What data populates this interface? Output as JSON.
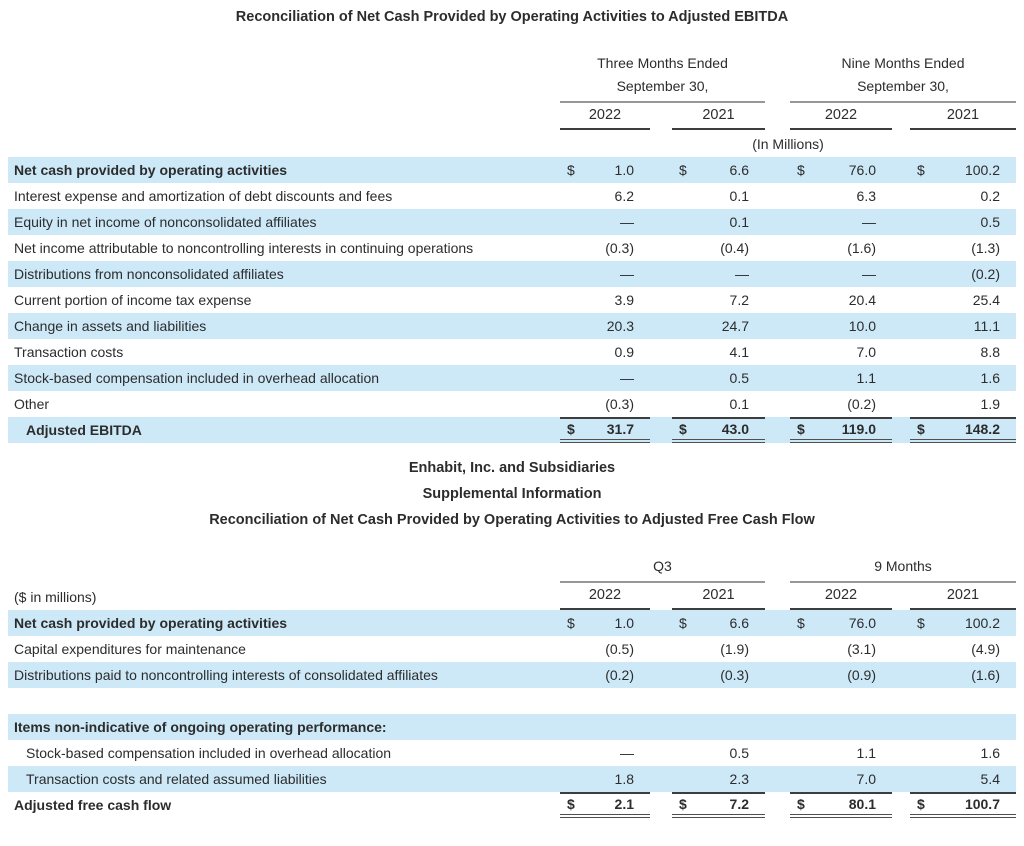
{
  "colors": {
    "stripe": "#cde9f8",
    "text": "#2c2c2c",
    "rule_light": "#979797",
    "rule_dark": "#3d3d3d"
  },
  "currency_symbol": "$",
  "table1": {
    "title": "Reconciliation of Net Cash Provided by Operating Activities to Adjusted EBITDA",
    "col_groups": [
      {
        "line1": "Three Months Ended",
        "line2": "September 30,"
      },
      {
        "line1": "Nine Months Ended",
        "line2": "September 30,"
      }
    ],
    "years": [
      "2022",
      "2021",
      "2022",
      "2021"
    ],
    "units_note": "(In Millions)",
    "rows": [
      {
        "label": "Net cash provided by operating activities",
        "values": [
          "1.0",
          "6.6",
          "76.0",
          "100.2"
        ],
        "dollar": true,
        "bold": true,
        "shade": true
      },
      {
        "label": "Interest expense and amortization of debt discounts and fees",
        "values": [
          "6.2",
          "0.1",
          "6.3",
          "0.2"
        ]
      },
      {
        "label": "Equity in net income of nonconsolidated affiliates",
        "values": [
          "—",
          "0.1",
          "—",
          "0.5"
        ],
        "shade": true
      },
      {
        "label": "Net income attributable to noncontrolling interests in continuing operations",
        "values": [
          "(0.3)",
          "(0.4)",
          "(1.6)",
          "(1.3)"
        ]
      },
      {
        "label": "Distributions from nonconsolidated affiliates",
        "values": [
          "—",
          "—",
          "—",
          "(0.2)"
        ],
        "shade": true
      },
      {
        "label": "Current portion of income tax expense",
        "values": [
          "3.9",
          "7.2",
          "20.4",
          "25.4"
        ]
      },
      {
        "label": "Change in assets and liabilities",
        "values": [
          "20.3",
          "24.7",
          "10.0",
          "11.1"
        ],
        "shade": true
      },
      {
        "label": "Transaction costs",
        "values": [
          "0.9",
          "4.1",
          "7.0",
          "8.8"
        ]
      },
      {
        "label": "Stock-based compensation included in overhead allocation",
        "values": [
          "—",
          "0.5",
          "1.1",
          "1.6"
        ],
        "shade": true
      },
      {
        "label": "Other",
        "values": [
          "(0.3)",
          "0.1",
          "(0.2)",
          "1.9"
        ]
      },
      {
        "label": "Adjusted EBITDA",
        "values": [
          "31.7",
          "43.0",
          "119.0",
          "148.2"
        ],
        "dollar": true,
        "bold": true,
        "shade": true,
        "indent": true,
        "total": true
      }
    ]
  },
  "section2": {
    "company": "Enhabit, Inc. and Subsidiaries",
    "subtitle": "Supplemental Information",
    "title": "Reconciliation of Net Cash Provided by Operating Activities to Adjusted Free Cash Flow"
  },
  "table2": {
    "left_label": "($ in millions)",
    "col_groups": [
      {
        "label": "Q3"
      },
      {
        "label": "9 Months"
      }
    ],
    "years": [
      "2022",
      "2021",
      "2022",
      "2021"
    ],
    "rows": [
      {
        "label": "Net cash provided by operating activities",
        "values": [
          "1.0",
          "6.6",
          "76.0",
          "100.2"
        ],
        "dollar": true,
        "bold": true,
        "shade": true
      },
      {
        "label": "Capital expenditures for maintenance",
        "values": [
          "(0.5)",
          "(1.9)",
          "(3.1)",
          "(4.9)"
        ]
      },
      {
        "label": "Distributions paid to noncontrolling interests of consolidated affiliates",
        "values": [
          "(0.2)",
          "(0.3)",
          "(0.9)",
          "(1.6)"
        ],
        "shade": true
      },
      {
        "spacer": true
      },
      {
        "label": "Items non-indicative of ongoing operating performance:",
        "values": [
          "",
          "",
          "",
          ""
        ],
        "bold": true,
        "shade": true
      },
      {
        "label": "Stock-based compensation included in overhead allocation",
        "values": [
          "—",
          "0.5",
          "1.1",
          "1.6"
        ],
        "indent": true
      },
      {
        "label": "Transaction costs and related assumed liabilities",
        "values": [
          "1.8",
          "2.3",
          "7.0",
          "5.4"
        ],
        "shade": true,
        "indent": true
      },
      {
        "label": "Adjusted free cash flow",
        "values": [
          "2.1",
          "7.2",
          "80.1",
          "100.7"
        ],
        "dollar": true,
        "bold": true,
        "total": true
      }
    ]
  }
}
